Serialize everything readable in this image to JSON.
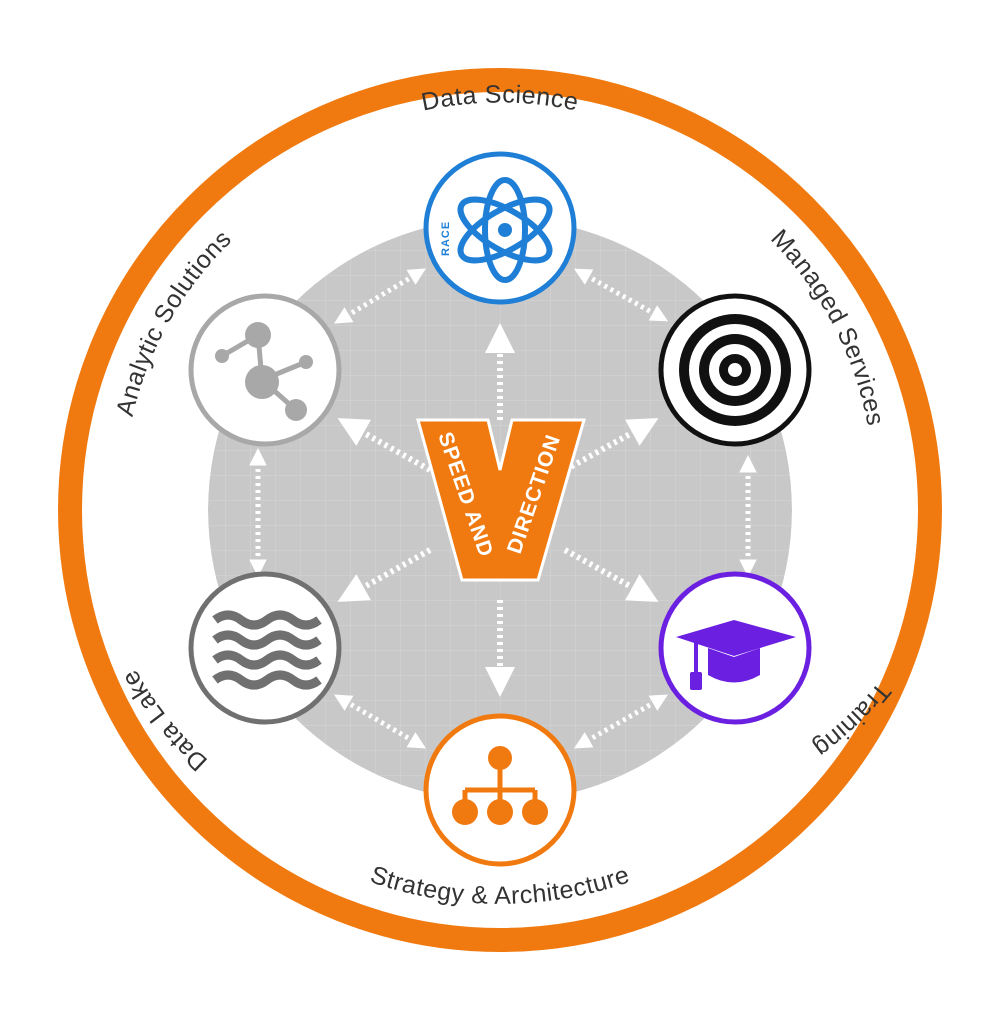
{
  "nodes": {
    "data_science": {
      "label": "Data Science",
      "icon": "atom-icon",
      "badge": "RACE",
      "color": "#1F7FD6"
    },
    "managed_services": {
      "label": "Managed Services",
      "icon": "target-icon",
      "color": "#111111"
    },
    "training": {
      "label": "Training",
      "icon": "graduation-cap-icon",
      "color": "#6B1FE0"
    },
    "strategy_architecture": {
      "label": "Strategy & Architecture",
      "icon": "org-chart-icon",
      "color": "#F07A10"
    },
    "data_lake": {
      "label": "Data Lake",
      "icon": "waves-icon",
      "color": "#707070"
    },
    "analytic_solutions": {
      "label": "Analytic Solutions",
      "icon": "molecule-network-icon",
      "color": "#A8A8A8"
    }
  },
  "center": {
    "icon": "v-logo-icon",
    "left_text": "SPEED AND",
    "right_text": "DIRECTION",
    "color": "#F07A10"
  },
  "colors": {
    "outer_ring": "#F07A10",
    "hexagon_fill": "#C8C8C8",
    "arrows": "#FFFFFF"
  }
}
